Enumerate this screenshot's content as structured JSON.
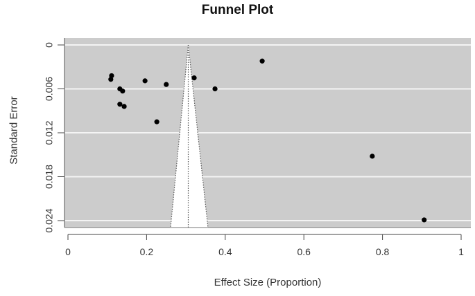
{
  "chart_data": {
    "type": "scatter",
    "title": "Funnel Plot",
    "xlabel": "Effect Size (Proportion)",
    "ylabel": "Standard Error",
    "xlim": [
      0,
      1
    ],
    "ylim": [
      0.024,
      0
    ],
    "y_reversed": true,
    "x_ticks": [
      "0",
      "0.2",
      "0.4",
      "0.6",
      "0.8",
      "1"
    ],
    "y_ticks": [
      "0",
      "0.006",
      "0.012",
      "0.018",
      "0.024"
    ],
    "grid": "horizontal white lines at y ticks",
    "background": "#cccccc",
    "points": [
      {
        "x": 0.111,
        "y": 0.0042
      },
      {
        "x": 0.109,
        "y": 0.0047
      },
      {
        "x": 0.132,
        "y": 0.006
      },
      {
        "x": 0.139,
        "y": 0.0063
      },
      {
        "x": 0.132,
        "y": 0.0081
      },
      {
        "x": 0.143,
        "y": 0.0084
      },
      {
        "x": 0.196,
        "y": 0.0049
      },
      {
        "x": 0.25,
        "y": 0.0054
      },
      {
        "x": 0.226,
        "y": 0.0105
      },
      {
        "x": 0.321,
        "y": 0.0045
      },
      {
        "x": 0.374,
        "y": 0.006
      },
      {
        "x": 0.494,
        "y": 0.0022
      },
      {
        "x": 0.774,
        "y": 0.0152
      },
      {
        "x": 0.906,
        "y": 0.0239
      }
    ],
    "funnel": {
      "center": 0.306,
      "apex_se": 0,
      "bottom_se": 0.0249,
      "bottom_left": 0.261,
      "bottom_right": 0.356,
      "fill": "#ffffff",
      "line_style": "dotted"
    }
  }
}
